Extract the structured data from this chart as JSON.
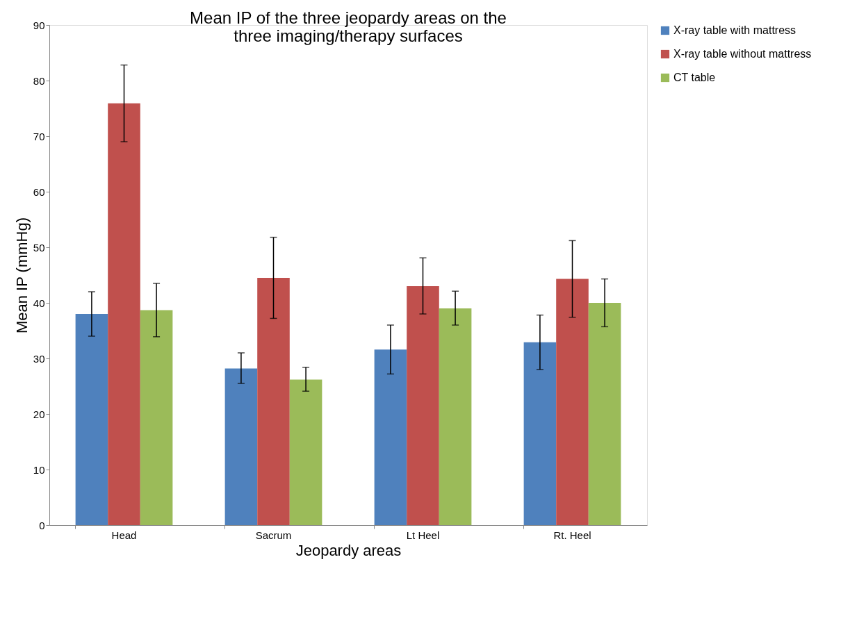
{
  "chart_data": {
    "type": "bar",
    "title": "Mean IP of the three jeopardy areas on the three imaging/therapy surfaces",
    "xlabel": "Jeopardy areas",
    "ylabel": "Mean IP (mmHg)",
    "categories": [
      "Head",
      "Sacrum",
      "Lt Heel",
      "Rt. Heel"
    ],
    "series": [
      {
        "name": "X-ray table with mattress",
        "color": "#4f81bd",
        "values": [
          38,
          28.2,
          31.6,
          32.9
        ],
        "errors": [
          [
            34,
            42
          ],
          [
            25.5,
            31
          ],
          [
            27.2,
            36
          ],
          [
            28,
            37.8
          ]
        ]
      },
      {
        "name": "X-ray table without mattress",
        "color": "#c0504d",
        "values": [
          75.9,
          44.5,
          43,
          44.3
        ],
        "errors": [
          [
            69,
            82.8
          ],
          [
            37.2,
            51.8
          ],
          [
            38,
            48.1
          ],
          [
            37.4,
            51.2
          ]
        ]
      },
      {
        "name": "CT table",
        "color": "#9bbb59",
        "values": [
          38.7,
          26.2,
          39,
          40
        ],
        "errors": [
          [
            33.9,
            43.5
          ],
          [
            24.1,
            28.4
          ],
          [
            36,
            42.1
          ],
          [
            35.7,
            44.3
          ]
        ]
      }
    ],
    "ylim": [
      0,
      90
    ],
    "yticks": [
      0,
      10,
      20,
      30,
      40,
      50,
      60,
      70,
      80,
      90
    ],
    "grid": false,
    "legend": "right"
  }
}
